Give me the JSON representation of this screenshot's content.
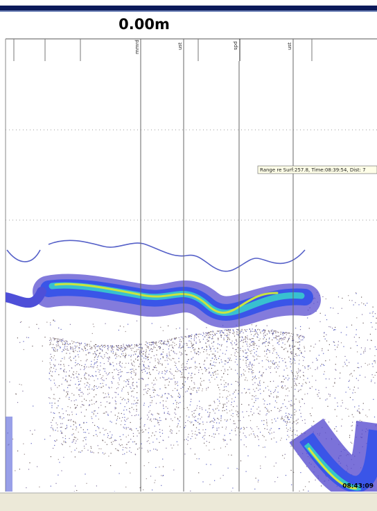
{
  "header": {
    "depth": "0.00m"
  },
  "markers": [
    {
      "label": "mmrd"
    },
    {
      "label": "ust"
    },
    {
      "label": "spd"
    },
    {
      "label": "ust"
    }
  ],
  "tooltip": "Range re Surf:257.8, Time:08:39:54, Dist: 7",
  "timestamp": "08:43:09"
}
